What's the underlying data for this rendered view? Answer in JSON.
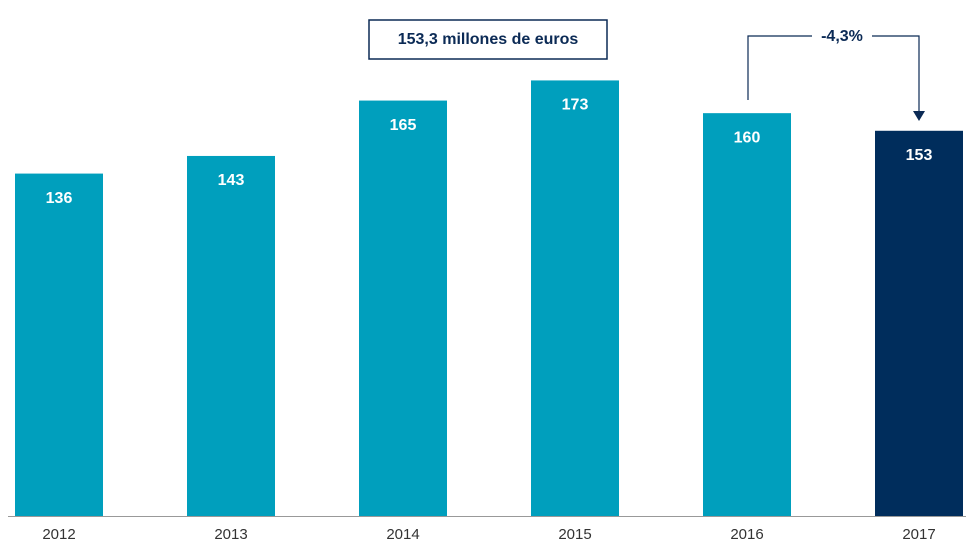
{
  "chart_data": {
    "type": "bar",
    "categories": [
      "2012",
      "2013",
      "2014",
      "2015",
      "2016",
      "2017"
    ],
    "values": [
      136,
      143,
      165,
      173,
      160,
      153
    ],
    "colors": [
      "#009fbd",
      "#009fbd",
      "#009fbd",
      "#009fbd",
      "#009fbd",
      "#002d5c"
    ],
    "ylim": [
      0,
      197
    ],
    "annotations": [
      "153,3 millones de euros",
      "-4,3%"
    ]
  }
}
